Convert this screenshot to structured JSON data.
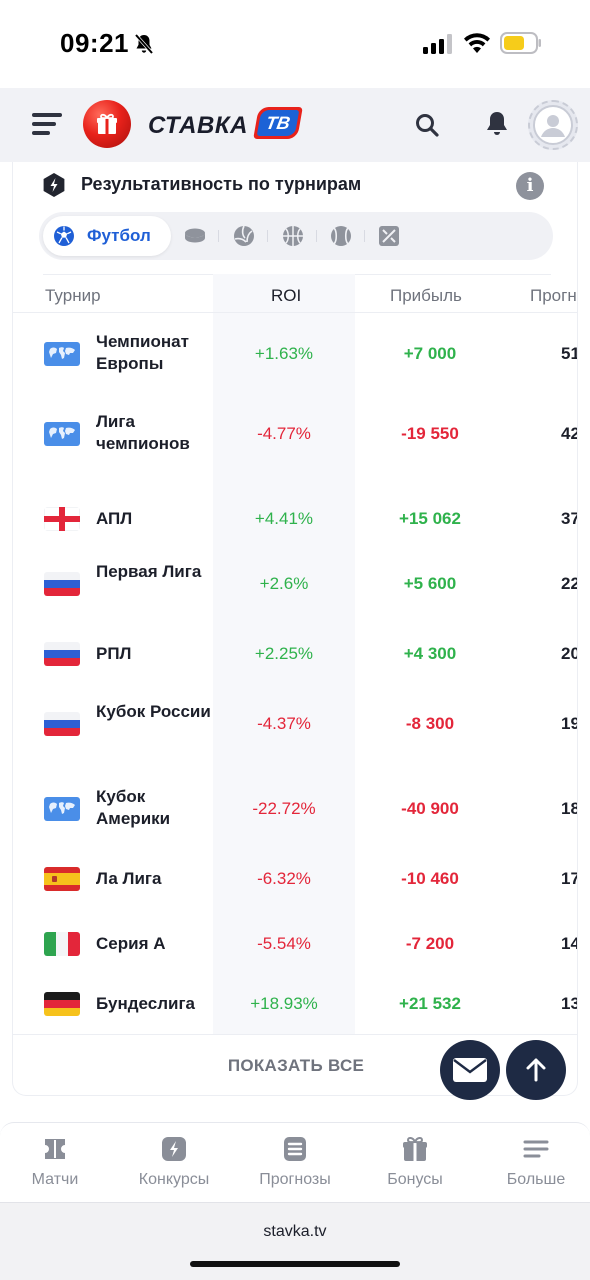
{
  "status_bar": {
    "time": "09:21"
  },
  "header": {
    "logo_text": "СТАВКА",
    "logo_badge": "ТВ",
    "icons": [
      "menu-icon",
      "search-icon",
      "bell-icon",
      "avatar"
    ]
  },
  "card": {
    "title": "Результативность по турнирам",
    "active_tab": "Футбол",
    "sport_tabs": [
      "football-icon",
      "hockey-icon",
      "volleyball-icon",
      "basketball-icon",
      "tennis-icon",
      "esports-icon"
    ],
    "columns": {
      "tournament": "Турнир",
      "roi": "ROI",
      "profit": "Прибыль",
      "forecasts": "Прогн"
    },
    "rows": [
      {
        "name": "Чемпионат Европы",
        "flag": "world",
        "roi": "+1.63%",
        "profit": "+7 000",
        "forecasts": "51",
        "sign": "pos"
      },
      {
        "name": "Лига чемпионов",
        "flag": "world",
        "roi": "-4.77%",
        "profit": "-19 550",
        "forecasts": "42",
        "sign": "neg"
      },
      {
        "name": "АПЛ",
        "flag": "england",
        "roi": "+4.41%",
        "profit": "+15 062",
        "forecasts": "37",
        "sign": "pos"
      },
      {
        "name": "Первая Лига",
        "flag": "russia",
        "roi": "+2.6%",
        "profit": "+5 600",
        "forecasts": "22",
        "sign": "pos"
      },
      {
        "name": "РПЛ",
        "flag": "russia",
        "roi": "+2.25%",
        "profit": "+4 300",
        "forecasts": "20",
        "sign": "pos"
      },
      {
        "name": "Кубок России",
        "flag": "russia",
        "roi": "-4.37%",
        "profit": "-8 300",
        "forecasts": "19",
        "sign": "neg"
      },
      {
        "name": "Кубок Америки",
        "flag": "world",
        "roi": "-22.72%",
        "profit": "-40 900",
        "forecasts": "18",
        "sign": "neg"
      },
      {
        "name": "Ла Лига",
        "flag": "spain",
        "roi": "-6.32%",
        "profit": "-10 460",
        "forecasts": "17",
        "sign": "neg"
      },
      {
        "name": "Серия А",
        "flag": "italy",
        "roi": "-5.54%",
        "profit": "-7 200",
        "forecasts": "14",
        "sign": "neg"
      },
      {
        "name": "Бундеслига",
        "flag": "germany",
        "roi": "+18.93%",
        "profit": "+21 532",
        "forecasts": "13",
        "sign": "pos"
      }
    ],
    "show_all": "ПОКАЗАТЬ ВСЕ"
  },
  "bottom_nav": [
    {
      "label": "Матчи",
      "icon": "matches-icon"
    },
    {
      "label": "Конкурсы",
      "icon": "contests-icon"
    },
    {
      "label": "Прогнозы",
      "icon": "forecasts-icon"
    },
    {
      "label": "Бонусы",
      "icon": "gift-icon"
    },
    {
      "label": "Больше",
      "icon": "more-icon"
    }
  ],
  "browser": {
    "url": "stavka.tv"
  },
  "colors": {
    "positive": "#2fb24c",
    "negative": "#e3263a",
    "accent": "#1f5fd6",
    "fab": "#1e2a44"
  }
}
